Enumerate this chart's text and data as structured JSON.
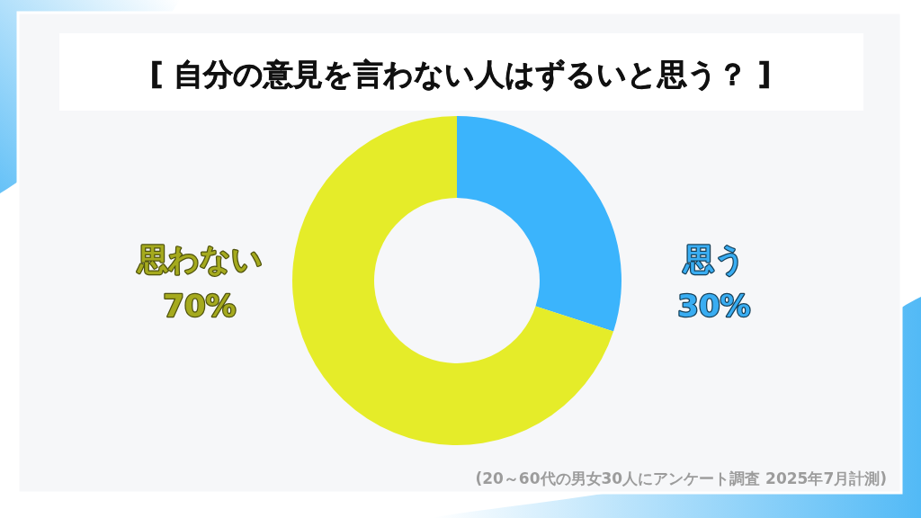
{
  "chart_data": {
    "type": "donut",
    "title": "[ 自分の意見を言わない人はずるいと思う？ ]",
    "categories": [
      "思う",
      "思わない"
    ],
    "values": [
      30,
      70
    ],
    "colors": [
      "#3bb4fc",
      "#e5ec29"
    ],
    "value_labels": [
      "30%",
      "70%"
    ],
    "annotations": [
      "(20～60代の男女30人にアンケート調査 2025年7月計測)"
    ]
  }
}
